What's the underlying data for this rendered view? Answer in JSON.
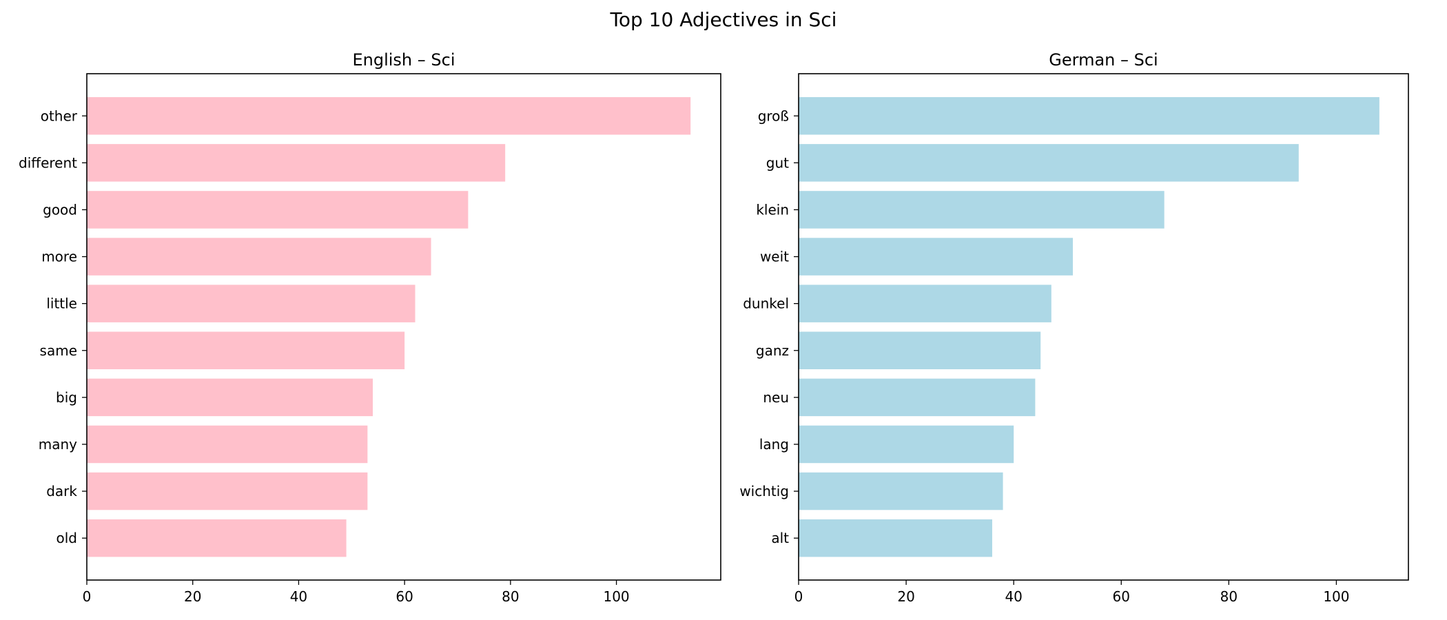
{
  "figure": {
    "title": "Top 10 Adjectives in Sci"
  },
  "chart_data": [
    {
      "type": "bar",
      "orientation": "horizontal",
      "title": "English – Sci",
      "xlabel": "",
      "ylabel": "",
      "xlim": [
        0,
        119.7
      ],
      "xticks": [
        0,
        20,
        40,
        60,
        80,
        100
      ],
      "categories": [
        "other",
        "different",
        "good",
        "more",
        "little",
        "same",
        "big",
        "many",
        "dark",
        "old"
      ],
      "values": [
        114,
        79,
        72,
        65,
        62,
        60,
        54,
        53,
        53,
        49
      ],
      "color": "#ffc0cb",
      "grid": false,
      "legend": null
    },
    {
      "type": "bar",
      "orientation": "horizontal",
      "title": "German – Sci",
      "xlabel": "",
      "ylabel": "",
      "xlim": [
        0,
        113.4
      ],
      "xticks": [
        0,
        20,
        40,
        60,
        80,
        100
      ],
      "categories": [
        "groß",
        "gut",
        "klein",
        "weit",
        "dunkel",
        "ganz",
        "neu",
        "lang",
        "wichtig",
        "alt"
      ],
      "values": [
        108,
        93,
        68,
        51,
        47,
        45,
        44,
        40,
        38,
        36
      ],
      "color": "#add8e6",
      "grid": false,
      "legend": null
    }
  ]
}
